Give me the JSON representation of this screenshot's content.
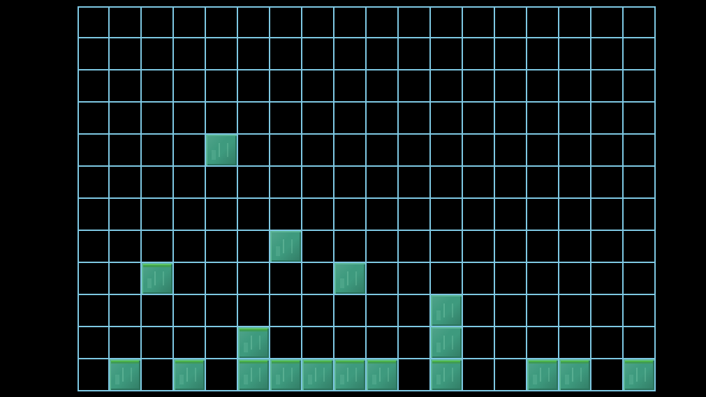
{
  "board": {
    "cols": 18,
    "rows": 12,
    "grid_color": "#7ec8e3",
    "background_color": "#000000",
    "tile_color": "#3e9a7e",
    "grass_color": "#5fd13a"
  },
  "tiles": [
    {
      "col": 4,
      "row": 4,
      "type": "stone"
    },
    {
      "col": 6,
      "row": 7,
      "type": "stone"
    },
    {
      "col": 2,
      "row": 8,
      "type": "grassy"
    },
    {
      "col": 8,
      "row": 8,
      "type": "stone"
    },
    {
      "col": 11,
      "row": 9,
      "type": "stone"
    },
    {
      "col": 5,
      "row": 10,
      "type": "grassy"
    },
    {
      "col": 11,
      "row": 10,
      "type": "stone"
    },
    {
      "col": 1,
      "row": 11,
      "type": "grassy"
    },
    {
      "col": 3,
      "row": 11,
      "type": "grassy"
    },
    {
      "col": 5,
      "row": 11,
      "type": "grassy"
    },
    {
      "col": 6,
      "row": 11,
      "type": "grassy"
    },
    {
      "col": 7,
      "row": 11,
      "type": "grassy"
    },
    {
      "col": 8,
      "row": 11,
      "type": "grassy"
    },
    {
      "col": 9,
      "row": 11,
      "type": "grassy"
    },
    {
      "col": 11,
      "row": 11,
      "type": "grassy"
    },
    {
      "col": 14,
      "row": 11,
      "type": "grassy"
    },
    {
      "col": 15,
      "row": 11,
      "type": "grassy"
    },
    {
      "col": 17,
      "row": 11,
      "type": "grassy"
    }
  ]
}
